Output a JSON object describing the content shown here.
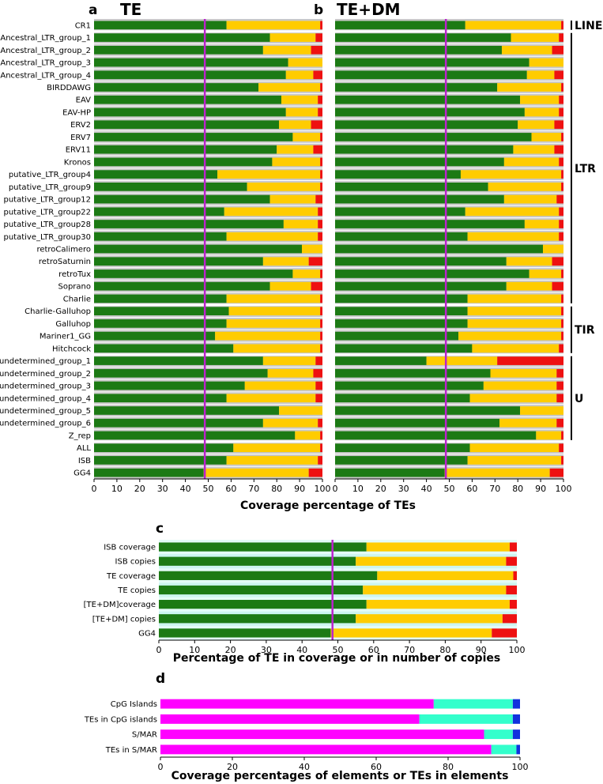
{
  "colors": {
    "green": "#1c7a14",
    "yellow": "#ffcc00",
    "red": "#ee1111",
    "gray": "#c8c8c8",
    "magenta": "#ff00ff",
    "cyan": "#33ffcc",
    "blue": "#1133dd",
    "purple_line": "#bb22cc",
    "gg4_label": "#880088"
  },
  "chart_data": [
    {
      "panel": "a",
      "title": "TE",
      "type": "bar",
      "stacked": true,
      "orientation": "horizontal",
      "xlabel": "Coverage percentage of TEs",
      "xlim": [
        0,
        100
      ],
      "xticks": [
        "0",
        "10",
        "20",
        "30",
        "40",
        "50",
        "60",
        "70",
        "80",
        "90",
        "100"
      ],
      "reference_line": 48.5,
      "categories": [
        "CR1",
        "Ancestral_LTR_group_1",
        "Ancestral_LTR_group_2",
        "Ancestral_LTR_group_3",
        "Ancestral_LTR_group_4",
        "BIRDDAWG",
        "EAV",
        "EAV-HP",
        "ERV2",
        "ERV7",
        "ERV11",
        "Kronos",
        "putative_LTR_group4",
        "putative_LTR_group9",
        "putative_LTR_group12",
        "putative_LTR_group22",
        "putative_LTR_group28",
        "putative_LTR_group30",
        "retroCalimero",
        "retroSaturnin",
        "retroTux",
        "Soprano",
        "Charlie",
        "Charlie-Galluhop",
        "Galluhop",
        "Mariner1_GG",
        "Hitchcock",
        "undetermined_group_1",
        "undetermined_group_2",
        "undetermined_group_3",
        "undetermined_group_4",
        "undetermined_group_5",
        "undetermined_group_6",
        "Z_rep",
        "ALL",
        "ISB",
        "GG4"
      ],
      "series": [
        {
          "name": "green",
          "values": [
            58,
            77,
            74,
            85,
            84,
            72,
            82,
            84,
            81,
            87,
            80,
            78,
            54,
            67,
            77,
            57,
            83,
            58,
            91,
            74,
            87,
            77,
            58,
            59,
            58,
            53,
            61,
            74,
            76,
            66,
            58,
            81,
            74,
            88,
            61,
            58,
            48
          ]
        },
        {
          "name": "yellow",
          "values": [
            41,
            20,
            21,
            15,
            12,
            27,
            16,
            14,
            14,
            12,
            16,
            21,
            45,
            32,
            20,
            41,
            15,
            40,
            9,
            20,
            12,
            18,
            41,
            40,
            41,
            46,
            38,
            23,
            20,
            31,
            39,
            19,
            24,
            11,
            38,
            40,
            46
          ]
        },
        {
          "name": "red",
          "values": [
            1,
            3,
            5,
            0,
            4,
            1,
            2,
            2,
            5,
            1,
            4,
            1,
            1,
            1,
            3,
            2,
            2,
            2,
            0,
            6,
            1,
            5,
            1,
            1,
            1,
            1,
            1,
            3,
            4,
            3,
            3,
            0,
            2,
            1,
            1,
            2,
            6
          ]
        }
      ],
      "groups": [
        {
          "label": "LINE",
          "from": 0,
          "to": 0
        },
        {
          "label": "LTR",
          "from": 1,
          "to": 22
        },
        {
          "label": "TIR",
          "from": 23,
          "to": 26
        },
        {
          "label": "U",
          "from": 27,
          "to": 33
        }
      ]
    },
    {
      "panel": "b",
      "title": "TE+DM",
      "type": "bar",
      "stacked": true,
      "orientation": "horizontal",
      "xlim": [
        0,
        100
      ],
      "xticks": [
        "0",
        "10",
        "20",
        "30",
        "40",
        "50",
        "60",
        "70",
        "80",
        "90",
        "100"
      ],
      "reference_line": 48.5,
      "series": [
        {
          "name": "green",
          "values": [
            57,
            77,
            73,
            85,
            84,
            71,
            81,
            83,
            80,
            86,
            78,
            74,
            55,
            67,
            74,
            57,
            83,
            58,
            91,
            75,
            85,
            75,
            58,
            58,
            58,
            54,
            60,
            40,
            68,
            65,
            59,
            81,
            72,
            88,
            59,
            58,
            48
          ]
        },
        {
          "name": "yellow",
          "values": [
            42,
            21,
            22,
            15,
            12,
            28,
            17,
            15,
            16,
            13,
            18,
            24,
            44,
            32,
            23,
            41,
            15,
            40,
            9,
            20,
            14,
            20,
            41,
            41,
            41,
            45,
            38,
            31,
            29,
            32,
            38,
            19,
            25,
            11,
            39,
            41,
            46
          ]
        },
        {
          "name": "red",
          "values": [
            1,
            2,
            5,
            0,
            4,
            1,
            2,
            2,
            4,
            1,
            4,
            2,
            1,
            1,
            3,
            2,
            2,
            2,
            0,
            5,
            1,
            5,
            1,
            1,
            1,
            1,
            2,
            29,
            3,
            3,
            3,
            0,
            3,
            1,
            2,
            1,
            6
          ]
        }
      ]
    },
    {
      "panel": "c",
      "type": "bar",
      "stacked": true,
      "orientation": "horizontal",
      "xlabel": "Percentage of TE in coverage or in number of copies",
      "xlim": [
        0,
        100
      ],
      "xticks": [
        "0",
        "10",
        "20",
        "30",
        "40",
        "50",
        "60",
        "70",
        "80",
        "90",
        "100"
      ],
      "reference_line": 48.5,
      "categories": [
        "ISB coverage",
        "ISB copies",
        "TE coverage",
        "TE copies",
        "[TE+DM]coverage",
        "[TE+DM] copies",
        "GG4"
      ],
      "series": [
        {
          "name": "green",
          "values": [
            58,
            55,
            61,
            57,
            58,
            55,
            48
          ]
        },
        {
          "name": "yellow",
          "values": [
            40,
            42,
            38,
            40,
            40,
            41,
            45
          ]
        },
        {
          "name": "red",
          "values": [
            2,
            3,
            1,
            3,
            2,
            4,
            7
          ]
        }
      ]
    },
    {
      "panel": "d",
      "type": "bar",
      "stacked": true,
      "orientation": "horizontal",
      "xlabel": "Coverage percentages of elements or TEs in elements",
      "xlim": [
        0,
        100
      ],
      "xticks": [
        "0",
        "20",
        "40",
        "60",
        "80",
        "100"
      ],
      "categories": [
        "CpG Islands",
        "TEs in CpG islands",
        "S/MAR",
        "TEs in S/MAR"
      ],
      "series": [
        {
          "name": "magenta",
          "values": [
            76,
            72,
            90,
            92
          ]
        },
        {
          "name": "cyan",
          "values": [
            22,
            26,
            8,
            7
          ]
        },
        {
          "name": "blue",
          "values": [
            2,
            2,
            2,
            1
          ]
        }
      ]
    }
  ]
}
